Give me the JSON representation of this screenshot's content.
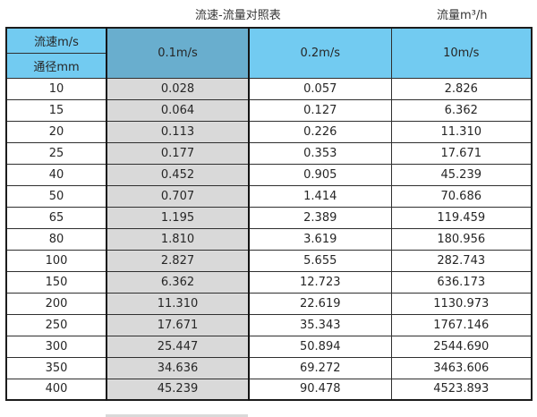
{
  "colors": {
    "header_blue": "#72cbf1",
    "highlight_header_blue": "#69aece",
    "highlight_column_gray": "#d9d9d9",
    "border_dark": "#1c1c1c",
    "text": "#262626"
  },
  "chart_data": {
    "type": "table",
    "title": "流速-流量对照表",
    "unit_label": "流量m³/h",
    "corner_top": "流速m/s",
    "corner_bottom": "通径mm",
    "columns": [
      "0.1m/s",
      "0.2m/s",
      "10m/s"
    ],
    "highlighted_column": "0.1m/s",
    "rows": [
      {
        "diameter": "10",
        "values": [
          "0.028",
          "0.057",
          "2.826"
        ]
      },
      {
        "diameter": "15",
        "values": [
          "0.064",
          "0.127",
          "6.362"
        ]
      },
      {
        "diameter": "20",
        "values": [
          "0.113",
          "0.226",
          "11.310"
        ]
      },
      {
        "diameter": "25",
        "values": [
          "0.177",
          "0.353",
          "17.671"
        ]
      },
      {
        "diameter": "40",
        "values": [
          "0.452",
          "0.905",
          "45.239"
        ]
      },
      {
        "diameter": "50",
        "values": [
          "0.707",
          "1.414",
          "70.686"
        ]
      },
      {
        "diameter": "65",
        "values": [
          "1.195",
          "2.389",
          "119.459"
        ]
      },
      {
        "diameter": "80",
        "values": [
          "1.810",
          "3.619",
          "180.956"
        ]
      },
      {
        "diameter": "100",
        "values": [
          "2.827",
          "5.655",
          "282.743"
        ]
      },
      {
        "diameter": "150",
        "values": [
          "6.362",
          "12.723",
          "636.173"
        ]
      },
      {
        "diameter": "200",
        "values": [
          "11.310",
          "22.619",
          "1130.973"
        ]
      },
      {
        "diameter": "250",
        "values": [
          "17.671",
          "35.343",
          "1767.146"
        ]
      },
      {
        "diameter": "300",
        "values": [
          "25.447",
          "50.894",
          "2544.690"
        ]
      },
      {
        "diameter": "350",
        "values": [
          "34.636",
          "69.272",
          "3463.606"
        ]
      },
      {
        "diameter": "400",
        "values": [
          "45.239",
          "90.478",
          "4523.893"
        ]
      }
    ]
  }
}
